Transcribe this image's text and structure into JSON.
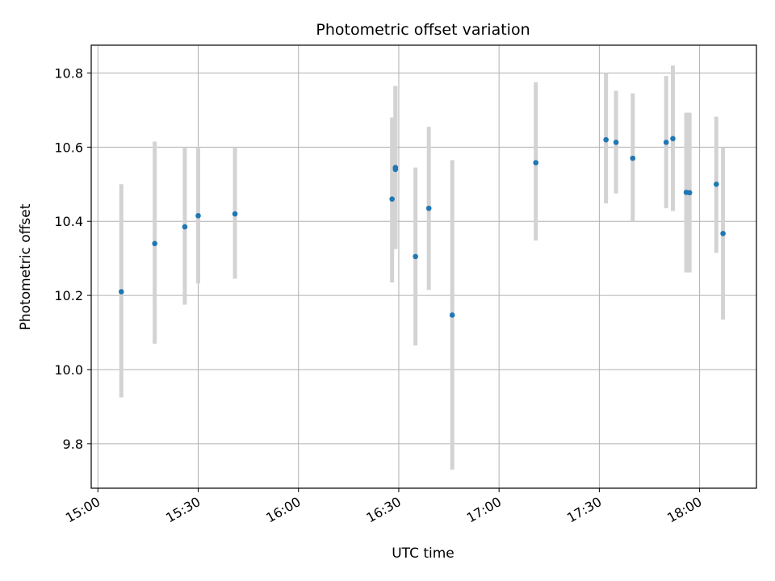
{
  "chart_data": {
    "type": "scatter",
    "title": "Photometric offset variation",
    "xlabel": "UTC time",
    "ylabel": "Photometric offset",
    "x_ticks": [
      "15:00",
      "15:30",
      "16:00",
      "16:30",
      "17:00",
      "17:30",
      "18:00"
    ],
    "y_ticks": [
      "9.8",
      "10.0",
      "10.2",
      "10.4",
      "10.6",
      "10.8"
    ],
    "xlim": [
      "14:58",
      "18:17"
    ],
    "ylim": [
      9.68,
      10.875
    ],
    "grid": true,
    "legend": "none",
    "colors": {
      "point": "#1f77b4",
      "errorbar": "#d3d3d3",
      "grid": "#b0b0b0"
    },
    "series": [
      {
        "points": [
          {
            "x": "15:07",
            "y": 10.21,
            "ylow": 9.925,
            "yhigh": 10.5
          },
          {
            "x": "15:17",
            "y": 10.34,
            "ylow": 10.07,
            "yhigh": 10.615
          },
          {
            "x": "15:26",
            "y": 10.385,
            "ylow": 10.175,
            "yhigh": 10.6
          },
          {
            "x": "15:30",
            "y": 10.415,
            "ylow": 10.232,
            "yhigh": 10.6
          },
          {
            "x": "15:41",
            "y": 10.42,
            "ylow": 10.245,
            "yhigh": 10.6
          },
          {
            "x": "16:28",
            "y": 10.46,
            "ylow": 10.235,
            "yhigh": 10.68
          },
          {
            "x": "16:29",
            "y": 10.54,
            "ylow": 10.325,
            "yhigh": 10.765
          },
          {
            "x": "16:29",
            "y": 10.545,
            "ylow": 10.325,
            "yhigh": 10.765
          },
          {
            "x": "16:35",
            "y": 10.305,
            "ylow": 10.065,
            "yhigh": 10.545
          },
          {
            "x": "16:39",
            "y": 10.435,
            "ylow": 10.215,
            "yhigh": 10.655
          },
          {
            "x": "16:46",
            "y": 10.147,
            "ylow": 9.73,
            "yhigh": 10.565
          },
          {
            "x": "17:11",
            "y": 10.558,
            "ylow": 10.348,
            "yhigh": 10.775
          },
          {
            "x": "17:32",
            "y": 10.62,
            "ylow": 10.448,
            "yhigh": 10.8
          },
          {
            "x": "17:35",
            "y": 10.613,
            "ylow": 10.475,
            "yhigh": 10.752
          },
          {
            "x": "17:40",
            "y": 10.57,
            "ylow": 10.4,
            "yhigh": 10.745
          },
          {
            "x": "17:50",
            "y": 10.613,
            "ylow": 10.435,
            "yhigh": 10.792
          },
          {
            "x": "17:52",
            "y": 10.623,
            "ylow": 10.428,
            "yhigh": 10.82
          },
          {
            "x": "17:56",
            "y": 10.478,
            "ylow": 10.262,
            "yhigh": 10.693
          },
          {
            "x": "17:57",
            "y": 10.477,
            "ylow": 10.262,
            "yhigh": 10.693
          },
          {
            "x": "18:05",
            "y": 10.5,
            "ylow": 10.315,
            "yhigh": 10.682
          },
          {
            "x": "18:07",
            "y": 10.367,
            "ylow": 10.135,
            "yhigh": 10.6
          }
        ]
      }
    ]
  }
}
